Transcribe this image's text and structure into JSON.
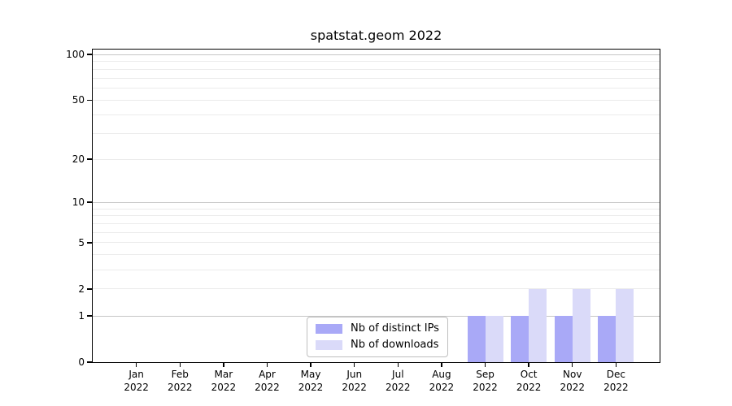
{
  "chart_data": {
    "type": "bar",
    "title": "spatstat.geom 2022",
    "categories": [
      "Jan 2022",
      "Feb 2022",
      "Mar 2022",
      "Apr 2022",
      "May 2022",
      "Jun 2022",
      "Jul 2022",
      "Aug 2022",
      "Sep 2022",
      "Oct 2022",
      "Nov 2022",
      "Dec 2022"
    ],
    "series": [
      {
        "name": "Nb of distinct IPs",
        "color": "#a9a9f7",
        "values": [
          0,
          0,
          0,
          0,
          0,
          0,
          0,
          0,
          1,
          1,
          1,
          1
        ]
      },
      {
        "name": "Nb of downloads",
        "color": "#dadaf9",
        "values": [
          0,
          0,
          0,
          0,
          0,
          0,
          0,
          0,
          1,
          2,
          2,
          2
        ]
      }
    ],
    "xlabel": "",
    "ylabel": "",
    "yscale": "log1p",
    "ylim": [
      0,
      108
    ],
    "yticks": [
      0,
      1,
      2,
      5,
      10,
      20,
      50,
      100
    ],
    "grid": {
      "major_values": [
        1,
        10,
        100
      ],
      "minor_values": [
        2,
        3,
        4,
        5,
        6,
        7,
        8,
        9,
        20,
        30,
        40,
        50,
        60,
        70,
        80,
        90
      ],
      "major_color": "#c6c6c6",
      "minor_color": "#ebebeb"
    },
    "legend": {
      "position": "inside-bottom-center",
      "entries": [
        "Nb of distinct IPs",
        "Nb of downloads"
      ]
    },
    "axis_color": "#000000",
    "text_color": "#000000",
    "background_color": "#ffffff"
  }
}
